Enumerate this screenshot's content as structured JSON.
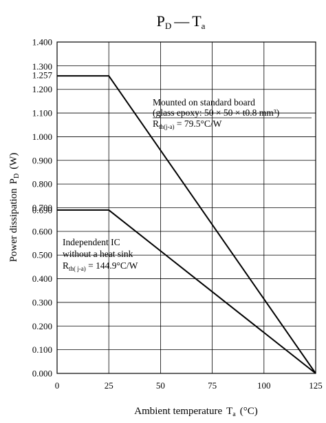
{
  "chart_data": {
    "type": "line",
    "title": {
      "main": "P",
      "main_sub": "D",
      "dash": "—",
      "var": "T",
      "var_sub": "a"
    },
    "xlabel": {
      "text": "Ambient temperature",
      "var": "T",
      "var_sub": "a",
      "unit": "(°C)"
    },
    "ylabel": {
      "text": "Power dissipation",
      "var": "P",
      "var_sub": "D",
      "unit": "(W)"
    },
    "xlim": [
      0,
      125
    ],
    "ylim": [
      0,
      1.4
    ],
    "x_ticks": [
      "0",
      "25",
      "50",
      "75",
      "100",
      "125"
    ],
    "x_tick_values": [
      0,
      25,
      50,
      75,
      100,
      125
    ],
    "y_ticks": [
      "0.000",
      "0.100",
      "0.200",
      "0.300",
      "0.400",
      "0.500",
      "0.600",
      "0.690",
      "0.700",
      "0.800",
      "0.900",
      "1.000",
      "1.100",
      "1.200",
      "1.257",
      "1.300",
      "1.400"
    ],
    "y_tick_values": [
      0,
      0.1,
      0.2,
      0.3,
      0.4,
      0.5,
      0.6,
      0.69,
      0.7,
      0.8,
      0.9,
      1.0,
      1.1,
      1.2,
      1.257,
      1.3,
      1.4
    ],
    "grid": true,
    "series": [
      {
        "x": [
          0,
          25,
          125
        ],
        "y": [
          1.257,
          1.257,
          0
        ]
      },
      {
        "x": [
          0,
          25,
          125
        ],
        "y": [
          0.69,
          0.69,
          0
        ]
      }
    ],
    "annotations": [
      {
        "line1": "Mounted on standard board",
        "line2": "(glass epoxy: 50 × 50 × t0.8 mm³)",
        "line3_pre": "R",
        "line3_sub": "th(j-a)",
        "line3_post": " = 79.5°C/W"
      },
      {
        "line1": "Independent IC",
        "line2": "without a heat sink",
        "line3_pre": "R",
        "line3_sub": "th( j-a)",
        "line3_post": " = 144.9°C/W"
      }
    ]
  }
}
